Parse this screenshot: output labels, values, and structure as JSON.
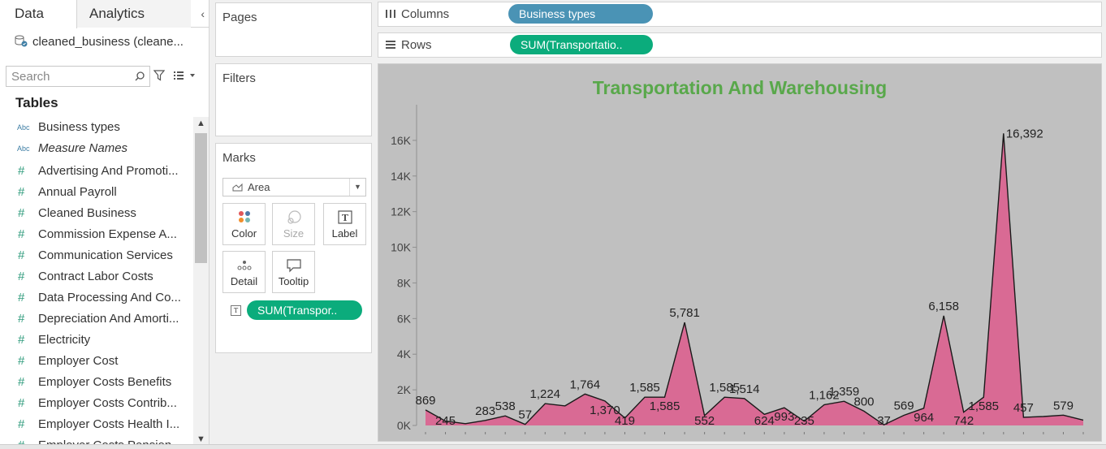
{
  "left_pane": {
    "tabs": {
      "data": "Data",
      "analytics": "Analytics",
      "collapse": "‹"
    },
    "datasource": "cleaned_business (cleane...",
    "search": {
      "placeholder": "Search"
    },
    "tables_heading": "Tables",
    "fields": [
      {
        "type": "Abc",
        "name": "Business types",
        "italic": false
      },
      {
        "type": "Abc",
        "name": "Measure Names",
        "italic": true
      },
      {
        "type": "#",
        "name": "Advertising And Promoti...",
        "italic": false
      },
      {
        "type": "#",
        "name": "Annual Payroll",
        "italic": false
      },
      {
        "type": "#",
        "name": "Cleaned Business",
        "italic": false
      },
      {
        "type": "#",
        "name": "Commission Expense A...",
        "italic": false
      },
      {
        "type": "#",
        "name": "Communication Services",
        "italic": false
      },
      {
        "type": "#",
        "name": "Contract Labor Costs",
        "italic": false
      },
      {
        "type": "#",
        "name": "Data Processing And Co...",
        "italic": false
      },
      {
        "type": "#",
        "name": "Depreciation And Amorti...",
        "italic": false
      },
      {
        "type": "#",
        "name": "Electricity",
        "italic": false
      },
      {
        "type": "#",
        "name": "Employer Cost",
        "italic": false
      },
      {
        "type": "#",
        "name": "Employer Costs Benefits",
        "italic": false
      },
      {
        "type": "#",
        "name": "Employer Costs Contrib...",
        "italic": false
      },
      {
        "type": "#",
        "name": "Employer Costs Health I...",
        "italic": false
      },
      {
        "type": "#",
        "name": "Employer Costs Pension...",
        "italic": false
      }
    ]
  },
  "pages": {
    "title": "Pages"
  },
  "filters": {
    "title": "Filters"
  },
  "marks": {
    "title": "Marks",
    "mark_type": "Area",
    "buttons": {
      "color": "Color",
      "size": "Size",
      "label": "Label",
      "detail": "Detail",
      "tooltip": "Tooltip"
    },
    "pill": "SUM(Transpor.."
  },
  "columns": {
    "label": "Columns",
    "pill": "Business types"
  },
  "rows": {
    "label": "Rows",
    "pill": "SUM(Transportatio.."
  },
  "colors": {
    "area_fill": "#d96a94",
    "title": "#59a84b",
    "chart_bg": "#c0c0c0",
    "pill_green": "#0bac7c",
    "pill_blue": "#4a93b5"
  },
  "chart_data": {
    "type": "area",
    "title": "Transportation And Warehousing",
    "xlabel": "",
    "ylabel": "",
    "ylim": [
      0,
      18000
    ],
    "y_ticks": [
      "0K",
      "2K",
      "4K",
      "6K",
      "8K",
      "10K",
      "12K",
      "14K",
      "16K"
    ],
    "y_tick_values": [
      0,
      2000,
      4000,
      6000,
      8000,
      10000,
      12000,
      14000,
      16000
    ],
    "values": [
      869,
      245,
      100,
      283,
      538,
      57,
      1224,
      1100,
      1764,
      1370,
      419,
      1585,
      1585,
      5781,
      552,
      1585,
      1514,
      624,
      993,
      235,
      1162,
      1359,
      800,
      37,
      569,
      964,
      6158,
      742,
      1585,
      16392,
      457,
      500,
      579,
      300
    ],
    "value_labels": [
      "869",
      "245",
      "",
      "283",
      "538",
      "57",
      "1,224",
      "",
      "1,764",
      "1,370",
      "419",
      "1,585",
      "1,585",
      "5,781",
      "552",
      "1,585",
      "1,514",
      "624",
      "993",
      "235",
      "1,162",
      "1,359",
      "800",
      "37",
      "569",
      "964",
      "6,158",
      "742",
      "1,585",
      "16,392",
      "457",
      "",
      "579",
      ""
    ],
    "label_below": [
      false,
      true,
      false,
      false,
      false,
      false,
      false,
      false,
      false,
      true,
      true,
      false,
      true,
      false,
      true,
      false,
      false,
      true,
      true,
      true,
      false,
      false,
      false,
      true,
      false,
      true,
      false,
      true,
      true,
      false,
      false,
      false,
      false,
      false
    ],
    "gridlines": false,
    "legend": "none"
  }
}
